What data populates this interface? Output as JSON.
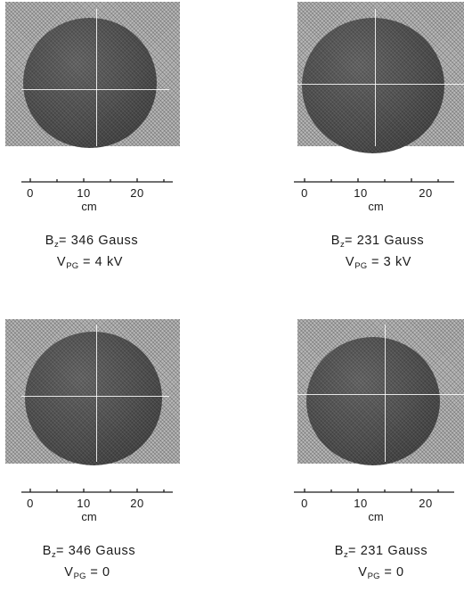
{
  "panels": [
    {
      "b_symbol": "B",
      "b_sub": "z",
      "b_value": "= 346  Gauss",
      "v_symbol": "V",
      "v_sub": "PG",
      "v_value": "= 4 kV"
    },
    {
      "b_symbol": "B",
      "b_sub": "z",
      "b_value": "= 231   Gauss",
      "v_symbol": "V",
      "v_sub": "PG",
      "v_value": "= 3 kV"
    },
    {
      "b_symbol": "B",
      "b_sub": "z",
      "b_value": "= 346  Gauss",
      "v_symbol": "V",
      "v_sub": "PG",
      "v_value": "= 0"
    },
    {
      "b_symbol": "B",
      "b_sub": "z",
      "b_value": "= 231   Gauss",
      "v_symbol": "V",
      "v_sub": "PG",
      "v_value": "= 0"
    }
  ],
  "scale": {
    "ticks": [
      "0",
      "10",
      "20"
    ],
    "unit": "cm"
  }
}
